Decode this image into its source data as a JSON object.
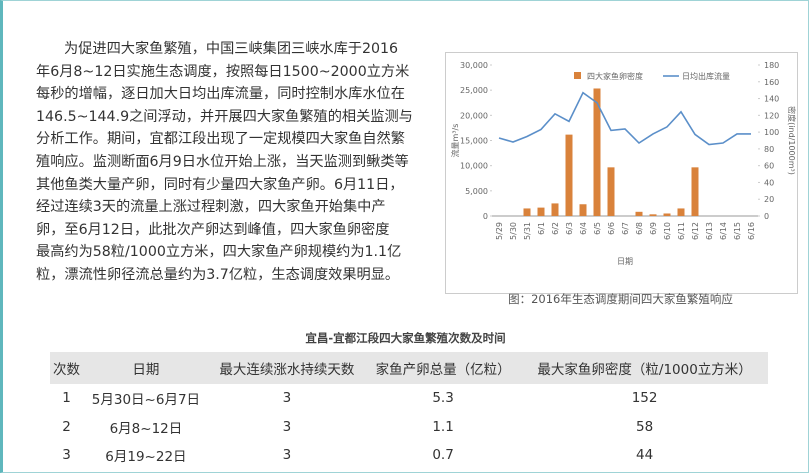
{
  "paragraph": [
    "为促进四大家鱼繁殖，中国三峡集团三峡水库于2016",
    "年6月8~12日实施生态调度，按照每日1500~2000立方米",
    "每秒的增幅，逐日加大日均出库流量，同时控制水库水位在",
    "146.5~144.9之间浮动，并开展四大家鱼繁殖的相关监测与",
    "分析工作。期间，宜都江段出现了一定规模四大家鱼自然繁",
    "殖响应。监测断面6月9日水位开始上涨，当天监测到鳅类等",
    "其他鱼类大量产卵，同时有少量四大家鱼产卵。6月11日，",
    "经过连续3天的流量上涨过程刺激，四大家鱼开始集中产",
    "卵，至6月12日，此批次产卵达到峰值，四大家鱼卵密度",
    "最高约为58粒/1000立方米，四大家鱼产卵规模约为1.1亿",
    "粒，漂流性卵径流总量约为3.7亿粒，生态调度效果明显。"
  ],
  "chart_data": {
    "type": "bar",
    "x_label": "日期",
    "y_label": "流量m³/s",
    "y2_label": "密度(ind/1000m³)",
    "categories": [
      "5/29",
      "5/30",
      "5/31",
      "6/1",
      "6/2",
      "6/3",
      "6/4",
      "6/5",
      "6/6",
      "6/7",
      "6/8",
      "6/9",
      "6/10",
      "6/11",
      "6/12",
      "6/13",
      "6/14",
      "6/15",
      "6/16"
    ],
    "series": [
      {
        "name": "四大家鱼卵密度",
        "type": "bar",
        "axis": "y2",
        "color": "#d9823b",
        "values": [
          0,
          0,
          9,
          10,
          15,
          97,
          14,
          152,
          58,
          0,
          5,
          2,
          3,
          9,
          58,
          0,
          0,
          0,
          0
        ]
      },
      {
        "name": "日均出库流量",
        "type": "line",
        "color": "#5b8fc9",
        "values": [
          15500,
          14700,
          15800,
          17200,
          20300,
          18800,
          24500,
          22500,
          17000,
          17300,
          14500,
          16300,
          17700,
          20700,
          16200,
          14200,
          14500,
          16300,
          16300
        ]
      }
    ],
    "ylim": [
      0,
      30000
    ],
    "yticks": [
      0,
      {
        "value": 5000,
        "label": "5,000"
      },
      {
        "value": 10000,
        "label": "10,000"
      },
      {
        "value": 15000,
        "label": "15,000"
      },
      {
        "value": 20000,
        "label": "20,000"
      },
      {
        "value": 25000,
        "label": "25,000"
      },
      {
        "value": 30000,
        "label": "30,000"
      }
    ],
    "y2lim": [
      0,
      180
    ],
    "y2ticks": [
      0,
      20,
      40,
      60,
      80,
      100,
      120,
      140,
      160,
      180
    ],
    "grid": false,
    "legend": "top"
  },
  "caption": "图：2016年生态调度期间四大家鱼繁殖响应",
  "table": {
    "title": "宜昌-宜都江段四大家鱼繁殖次数及时间",
    "header": [
      "次数",
      "日期",
      "最大连续涨水持续天数",
      "家鱼产卵总量（亿粒）",
      "最大家鱼卵密度（粒/1000立方米）"
    ],
    "rows": [
      [
        1,
        "5月30日~6月7日",
        3,
        5.3,
        152
      ],
      [
        2,
        "6月8~12日",
        3,
        1.1,
        58
      ],
      [
        3,
        "6月19~22日",
        3,
        0.7,
        44
      ]
    ]
  }
}
